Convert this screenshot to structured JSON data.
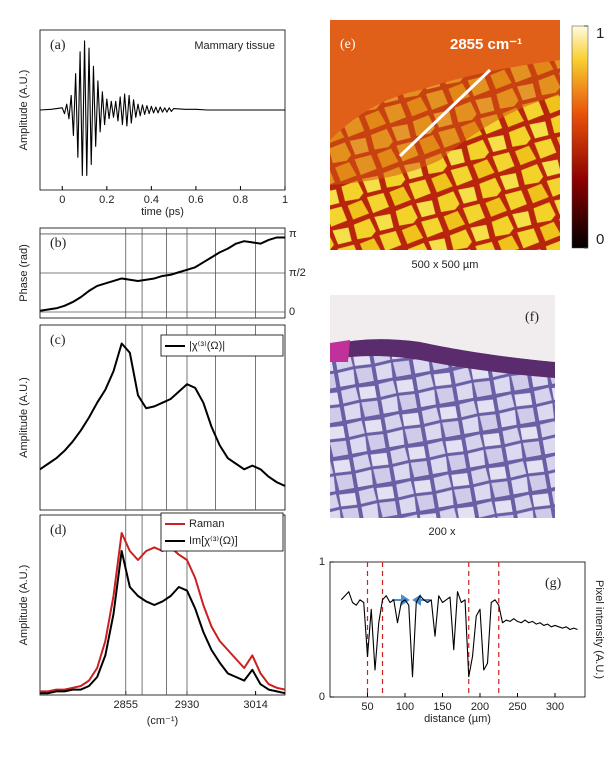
{
  "chart_data": [
    {
      "type": "line",
      "panel_label": "(a)",
      "annotation": "Mammary tissue",
      "xlabel": "time (ps)",
      "ylabel": "Amplitude (A.U.)",
      "xlim": [
        -0.1,
        1
      ],
      "ylim": [
        -1.1,
        1.1
      ],
      "xticks": [
        0,
        0.2,
        0.4,
        0.6,
        0.8,
        1
      ],
      "x": [
        -0.1,
        -0.05,
        0,
        0.01,
        0.02,
        0.03,
        0.04,
        0.05,
        0.06,
        0.07,
        0.08,
        0.09,
        0.1,
        0.11,
        0.12,
        0.13,
        0.14,
        0.15,
        0.16,
        0.17,
        0.18,
        0.19,
        0.2,
        0.21,
        0.22,
        0.23,
        0.24,
        0.25,
        0.26,
        0.27,
        0.28,
        0.29,
        0.3,
        0.31,
        0.32,
        0.33,
        0.34,
        0.35,
        0.36,
        0.37,
        0.38,
        0.39,
        0.4,
        0.41,
        0.42,
        0.43,
        0.44,
        0.45,
        0.46,
        0.47,
        0.48,
        0.49,
        0.5,
        0.55,
        0.6,
        0.65,
        0.7,
        0.75,
        0.8,
        0.85,
        0.9,
        0.95,
        1
      ],
      "series": [
        {
          "color": "#000000",
          "values": [
            0,
            0.01,
            0.03,
            -0.05,
            0.08,
            -0.12,
            0.2,
            -0.35,
            0.5,
            -0.65,
            0.8,
            -0.9,
            0.95,
            -0.9,
            0.85,
            -0.75,
            0.6,
            -0.5,
            0.4,
            -0.3,
            0.25,
            -0.2,
            0.15,
            -0.12,
            0.12,
            -0.1,
            0.12,
            -0.15,
            0.18,
            -0.2,
            0.22,
            -0.22,
            0.2,
            -0.18,
            0.14,
            -0.1,
            0.08,
            -0.08,
            0.07,
            -0.06,
            0.06,
            -0.05,
            0.05,
            -0.04,
            0.04,
            -0.04,
            0.04,
            -0.03,
            0.03,
            -0.03,
            0.03,
            -0.02,
            0.02,
            0.01,
            0.01,
            0,
            0,
            0,
            0,
            0,
            0,
            0,
            0
          ]
        }
      ]
    },
    {
      "type": "line",
      "panel_label": "(b)",
      "ylabel": "Phase (rad)",
      "ytick_side": "right",
      "grid": true,
      "xlim": [
        2750,
        3050
      ],
      "ylim": [
        -0.24,
        3.38
      ],
      "yticks": [
        0,
        {
          "value": 1.5708,
          "label": "π/2"
        },
        {
          "value": 3.1416,
          "label": "π"
        }
      ],
      "vlines": [
        2855,
        2875,
        2905,
        2930,
        2965,
        3014
      ],
      "x": [
        2750,
        2760,
        2770,
        2780,
        2790,
        2800,
        2810,
        2820,
        2830,
        2840,
        2850,
        2860,
        2870,
        2880,
        2890,
        2900,
        2910,
        2920,
        2930,
        2940,
        2950,
        2960,
        2970,
        2980,
        2990,
        3000,
        3010,
        3020,
        3030,
        3040,
        3050
      ],
      "series": [
        {
          "color": "#000000",
          "values": [
            0.05,
            0.1,
            0.15,
            0.25,
            0.4,
            0.6,
            0.85,
            1.05,
            1.15,
            1.25,
            1.35,
            1.3,
            1.25,
            1.3,
            1.35,
            1.45,
            1.5,
            1.6,
            1.7,
            1.8,
            2.0,
            2.2,
            2.4,
            2.55,
            2.75,
            2.85,
            2.8,
            2.75,
            2.9,
            3.0,
            3.0
          ]
        }
      ]
    },
    {
      "type": "line",
      "panel_label": "(c)",
      "ylabel": "Amplitude (A.U.)",
      "xlim": [
        2750,
        3050
      ],
      "ylim": [
        0,
        1
      ],
      "vlines": [
        2855,
        2875,
        2905,
        2930,
        2965,
        3014
      ],
      "x": [
        2750,
        2760,
        2770,
        2780,
        2790,
        2800,
        2810,
        2820,
        2830,
        2840,
        2850,
        2860,
        2870,
        2880,
        2890,
        2900,
        2910,
        2920,
        2930,
        2940,
        2950,
        2960,
        2970,
        2980,
        2990,
        3000,
        3010,
        3020,
        3030,
        3040,
        3050
      ],
      "series": [
        {
          "name": "|χ⁽³⁾(Ω)|",
          "color": "#000000",
          "values": [
            0.22,
            0.25,
            0.28,
            0.32,
            0.37,
            0.43,
            0.5,
            0.58,
            0.65,
            0.75,
            0.9,
            0.85,
            0.62,
            0.55,
            0.56,
            0.58,
            0.6,
            0.64,
            0.68,
            0.66,
            0.58,
            0.45,
            0.35,
            0.28,
            0.25,
            0.22,
            0.24,
            0.22,
            0.18,
            0.15,
            0.13
          ]
        }
      ]
    },
    {
      "type": "line",
      "panel_label": "(d)",
      "ylabel": "Amplitude (A.U.)",
      "xlabel": "(cm⁻¹)",
      "xlim": [
        2750,
        3050
      ],
      "ylim": [
        0,
        1
      ],
      "xticks": [
        2855,
        2930,
        3014
      ],
      "vlines": [
        2855,
        2875,
        2905,
        2930
      ],
      "x": [
        2750,
        2760,
        2770,
        2780,
        2790,
        2800,
        2810,
        2820,
        2830,
        2840,
        2850,
        2860,
        2870,
        2880,
        2890,
        2900,
        2910,
        2920,
        2930,
        2940,
        2950,
        2960,
        2970,
        2980,
        2990,
        3000,
        3010,
        3020,
        3030,
        3040,
        3050
      ],
      "series": [
        {
          "name": "Raman",
          "color": "#cc1f1f",
          "values": [
            0.02,
            0.02,
            0.03,
            0.03,
            0.04,
            0.05,
            0.08,
            0.15,
            0.3,
            0.55,
            0.9,
            0.8,
            0.75,
            0.8,
            0.82,
            0.8,
            0.82,
            0.78,
            0.75,
            0.65,
            0.5,
            0.38,
            0.3,
            0.25,
            0.2,
            0.15,
            0.22,
            0.12,
            0.06,
            0.04,
            0.03
          ]
        },
        {
          "name": "Im[χ⁽³⁾(Ω)]",
          "color": "#000000",
          "values": [
            0.01,
            0.01,
            0.02,
            0.02,
            0.03,
            0.03,
            0.05,
            0.1,
            0.22,
            0.45,
            0.8,
            0.6,
            0.55,
            0.52,
            0.5,
            0.52,
            0.55,
            0.6,
            0.58,
            0.48,
            0.35,
            0.25,
            0.18,
            0.12,
            0.1,
            0.08,
            0.14,
            0.06,
            0.03,
            0.02,
            0.01
          ]
        }
      ]
    },
    {
      "type": "line",
      "panel_label": "(g)",
      "xlabel": "distance (µm)",
      "ylabel": "Pixel intensity (A.U.)",
      "ylabel_side": "right",
      "xlim": [
        0,
        340
      ],
      "ylim": [
        0,
        1
      ],
      "xticks": [
        50,
        100,
        150,
        200,
        250,
        300
      ],
      "yticks": [
        0,
        1
      ],
      "marker_lines": [
        50,
        70,
        185,
        225
      ],
      "marker_color": "#cc2222",
      "x": [
        15,
        20,
        25,
        30,
        35,
        40,
        45,
        50,
        55,
        60,
        65,
        70,
        75,
        80,
        85,
        90,
        95,
        100,
        105,
        110,
        115,
        120,
        125,
        130,
        135,
        140,
        145,
        150,
        155,
        160,
        165,
        170,
        175,
        180,
        185,
        190,
        195,
        200,
        205,
        210,
        215,
        220,
        225,
        230,
        235,
        240,
        245,
        250,
        255,
        260,
        265,
        270,
        275,
        280,
        285,
        290,
        295,
        300,
        305,
        310,
        315,
        320,
        325,
        330
      ],
      "series": [
        {
          "color": "#000000",
          "values": [
            0.72,
            0.75,
            0.78,
            0.7,
            0.68,
            0.72,
            0.7,
            0.3,
            0.65,
            0.2,
            0.55,
            0.72,
            0.75,
            0.7,
            0.72,
            0.55,
            0.7,
            0.72,
            0.68,
            0.15,
            0.7,
            0.75,
            0.72,
            0.7,
            0.72,
            0.45,
            0.75,
            0.7,
            0.72,
            0.74,
            0.35,
            0.78,
            0.7,
            0.72,
            0.15,
            0.3,
            0.6,
            0.65,
            0.2,
            0.25,
            0.7,
            0.72,
            0.68,
            0.55,
            0.57,
            0.56,
            0.58,
            0.56,
            0.55,
            0.57,
            0.55,
            0.56,
            0.54,
            0.55,
            0.53,
            0.54,
            0.52,
            0.53,
            0.52,
            0.51,
            0.52,
            0.5,
            0.51,
            0.5
          ]
        }
      ]
    }
  ],
  "images": [
    {
      "panel_label": "(e)",
      "annotation": "2855 cm⁻¹",
      "caption": "500 x 500 µm",
      "colorbar_ticks": [
        0,
        1
      ]
    },
    {
      "panel_label": "(f)",
      "caption": "200 x"
    }
  ]
}
